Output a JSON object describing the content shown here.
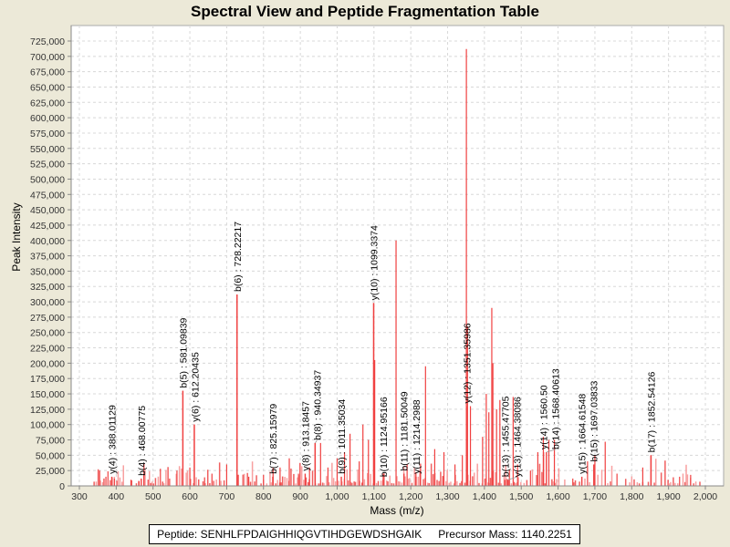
{
  "info": {
    "peptide_label": "Peptide:",
    "peptide": "SENHLFPDAIGHHIQGVTIHDGEWDSHGAIK",
    "precursor_label": "Precursor Mass:",
    "precursor_mass": "1140.2251"
  },
  "colors": {
    "background": "#ece9d8",
    "plot_background": "#ffffff",
    "peak_dark": "#f04040",
    "peak_light": "#f8a0a0",
    "grid": "#d8d8d8"
  },
  "chart_data": {
    "type": "bar",
    "title": "Spectral View and Peptide Fragmentation Table",
    "xlabel": "Mass (m/z)",
    "ylabel": "Peak Intensity",
    "xlim": [
      255,
      2040
    ],
    "ylim": [
      0,
      740000
    ],
    "grid": true,
    "x_ticks": [
      300,
      400,
      500,
      600,
      700,
      800,
      900,
      1000,
      1100,
      1200,
      1300,
      1400,
      1500,
      1600,
      1700,
      1800,
      1900,
      2000
    ],
    "x_tick_labels": [
      "300",
      "400",
      "500",
      "600",
      "700",
      "800",
      "900",
      "1,000",
      "1,100",
      "1,200",
      "1,300",
      "1,400",
      "1,500",
      "1,600",
      "1,700",
      "1,800",
      "1,900",
      "2,000"
    ],
    "y_ticks": [
      0,
      25000,
      50000,
      75000,
      100000,
      125000,
      150000,
      175000,
      200000,
      225000,
      250000,
      275000,
      300000,
      325000,
      350000,
      375000,
      400000,
      425000,
      450000,
      475000,
      500000,
      525000,
      550000,
      575000,
      600000,
      625000,
      650000,
      675000,
      700000,
      725000
    ],
    "y_tick_labels": [
      "0",
      "25,000",
      "50,000",
      "75,000",
      "100,000",
      "125,000",
      "150,000",
      "175,000",
      "200,000",
      "225,000",
      "250,000",
      "275,000",
      "300,000",
      "325,000",
      "350,000",
      "375,000",
      "400,000",
      "425,000",
      "450,000",
      "475,000",
      "500,000",
      "525,000",
      "550,000",
      "575,000",
      "600,000",
      "625,000",
      "650,000",
      "675,000",
      "700,000",
      "725,000"
    ],
    "annotated_peaks": [
      {
        "label": "y(4) : 388.01129",
        "mz": 388.01,
        "intensity": 15000
      },
      {
        "label": "b(4) : 468.00775",
        "mz": 468.01,
        "intensity": 12000
      },
      {
        "label": "b(5) : 581.09839",
        "mz": 581.1,
        "intensity": 155000
      },
      {
        "label": "y(6) : 612.20435",
        "mz": 612.2,
        "intensity": 100000
      },
      {
        "label": "b(6) : 728.22217",
        "mz": 728.22,
        "intensity": 312000
      },
      {
        "label": "b(7) : 825.15979",
        "mz": 825.16,
        "intensity": 15000
      },
      {
        "label": "y(8) : 913.18457",
        "mz": 913.18,
        "intensity": 20000
      },
      {
        "label": "b(8) : 940.34937",
        "mz": 940.35,
        "intensity": 70000
      },
      {
        "label": "b(9) : 1011.35034",
        "mz": 1011.35,
        "intensity": 15000
      },
      {
        "label": "y(10) : 1099.3374",
        "mz": 1099.34,
        "intensity": 298000
      },
      {
        "label": "b(10) : 1124.95166",
        "mz": 1124.95,
        "intensity": 10000
      },
      {
        "label": "b(11) : 1181.50049",
        "mz": 1181.5,
        "intensity": 20000
      },
      {
        "label": "y(11) : 1214.2988",
        "mz": 1214.3,
        "intensity": 15000
      },
      {
        "label": "y(12) : 1351.35986",
        "mz": 1351.36,
        "intensity": 130000
      },
      {
        "label": "y(13) : 1464.38086",
        "mz": 1464.38,
        "intensity": 10000
      },
      {
        "label": "b(13) : 1455.47705",
        "mz": 1455.48,
        "intensity": 10000
      },
      {
        "label": "b(14) : 1568.40613",
        "mz": 1568.41,
        "intensity": 55000
      },
      {
        "label": "y(14) : 1560.50",
        "mz": 1560.5,
        "intensity": 55000
      },
      {
        "label": "y(15) : 1664.61548",
        "mz": 1664.62,
        "intensity": 15000
      },
      {
        "label": "b(15) : 1697.03833",
        "mz": 1697.04,
        "intensity": 35000
      },
      {
        "label": "b(17) : 1852.54126",
        "mz": 1852.54,
        "intensity": 50000
      }
    ],
    "major_peaks": [
      {
        "mz": 355,
        "intensity": 25000
      },
      {
        "mz": 372,
        "intensity": 15000
      },
      {
        "mz": 395,
        "intensity": 12000
      },
      {
        "mz": 440,
        "intensity": 10000
      },
      {
        "mz": 462,
        "intensity": 8000
      },
      {
        "mz": 475,
        "intensity": 18000
      },
      {
        "mz": 520,
        "intensity": 28000
      },
      {
        "mz": 545,
        "intensity": 12000
      },
      {
        "mz": 565,
        "intensity": 25000
      },
      {
        "mz": 581,
        "intensity": 155000
      },
      {
        "mz": 600,
        "intensity": 30000
      },
      {
        "mz": 612,
        "intensity": 100000
      },
      {
        "mz": 640,
        "intensity": 14000
      },
      {
        "mz": 660,
        "intensity": 20000
      },
      {
        "mz": 700,
        "intensity": 35000
      },
      {
        "mz": 728,
        "intensity": 312000
      },
      {
        "mz": 760,
        "intensity": 15000
      },
      {
        "mz": 800,
        "intensity": 18000
      },
      {
        "mz": 845,
        "intensity": 30000
      },
      {
        "mz": 870,
        "intensity": 45000
      },
      {
        "mz": 895,
        "intensity": 20000
      },
      {
        "mz": 925,
        "intensity": 30000
      },
      {
        "mz": 940,
        "intensity": 70000
      },
      {
        "mz": 955,
        "intensity": 70000
      },
      {
        "mz": 975,
        "intensity": 30000
      },
      {
        "mz": 1000,
        "intensity": 45000
      },
      {
        "mz": 1020,
        "intensity": 55000
      },
      {
        "mz": 1035,
        "intensity": 85000
      },
      {
        "mz": 1060,
        "intensity": 40000
      },
      {
        "mz": 1070,
        "intensity": 100000
      },
      {
        "mz": 1085,
        "intensity": 75000
      },
      {
        "mz": 1099,
        "intensity": 298000
      },
      {
        "mz": 1102,
        "intensity": 205000
      },
      {
        "mz": 1125,
        "intensity": 20000
      },
      {
        "mz": 1160,
        "intensity": 400000
      },
      {
        "mz": 1190,
        "intensity": 35000
      },
      {
        "mz": 1225,
        "intensity": 25000
      },
      {
        "mz": 1240,
        "intensity": 195000
      },
      {
        "mz": 1265,
        "intensity": 60000
      },
      {
        "mz": 1290,
        "intensity": 55000
      },
      {
        "mz": 1320,
        "intensity": 35000
      },
      {
        "mz": 1340,
        "intensity": 50000
      },
      {
        "mz": 1351,
        "intensity": 712000
      },
      {
        "mz": 1354,
        "intensity": 260000
      },
      {
        "mz": 1362,
        "intensity": 130000
      },
      {
        "mz": 1395,
        "intensity": 80000
      },
      {
        "mz": 1405,
        "intensity": 150000
      },
      {
        "mz": 1412,
        "intensity": 120000
      },
      {
        "mz": 1420,
        "intensity": 290000
      },
      {
        "mz": 1423,
        "intensity": 200000
      },
      {
        "mz": 1433,
        "intensity": 125000
      },
      {
        "mz": 1442,
        "intensity": 140000
      },
      {
        "mz": 1478,
        "intensity": 145000
      },
      {
        "mz": 1490,
        "intensity": 35000
      },
      {
        "mz": 1525,
        "intensity": 25000
      },
      {
        "mz": 1545,
        "intensity": 55000
      },
      {
        "mz": 1560,
        "intensity": 80000
      },
      {
        "mz": 1575,
        "intensity": 75000
      },
      {
        "mz": 1590,
        "intensity": 75000
      },
      {
        "mz": 1640,
        "intensity": 12000
      },
      {
        "mz": 1680,
        "intensity": 40000
      },
      {
        "mz": 1700,
        "intensity": 50000
      },
      {
        "mz": 1728,
        "intensity": 72000
      },
      {
        "mz": 1760,
        "intensity": 20000
      },
      {
        "mz": 1830,
        "intensity": 30000
      },
      {
        "mz": 1852,
        "intensity": 50000
      },
      {
        "mz": 1930,
        "intensity": 15000
      },
      {
        "mz": 1960,
        "intensity": 18000
      }
    ]
  }
}
